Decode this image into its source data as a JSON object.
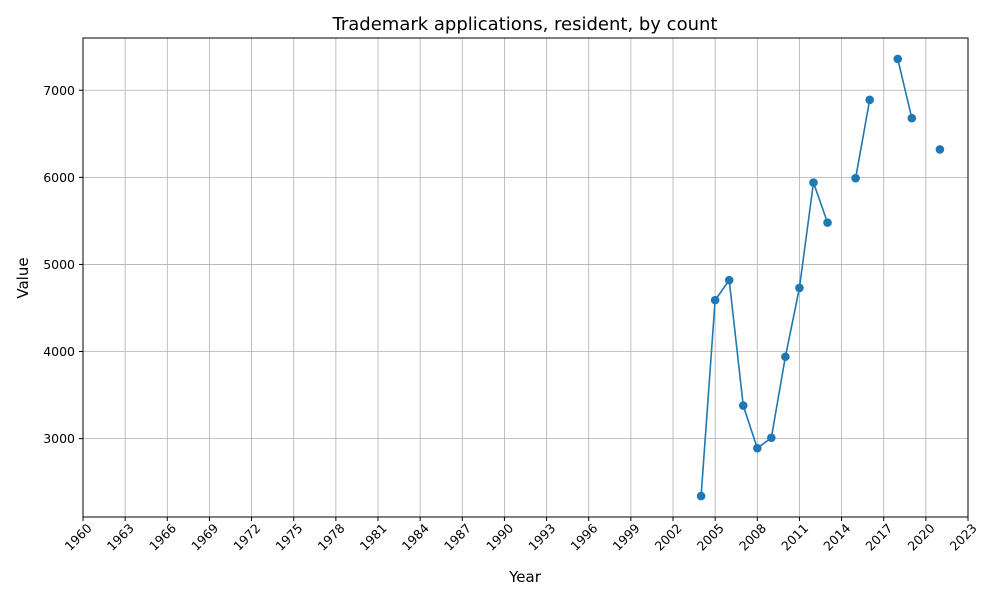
{
  "chart_data": {
    "type": "line",
    "title": "Trademark applications, resident, by count",
    "xlabel": "Year",
    "ylabel": "Value",
    "xlim": [
      1960,
      2023
    ],
    "ylim": [
      2100,
      7600
    ],
    "xticks": [
      1960,
      1963,
      1966,
      1969,
      1972,
      1975,
      1978,
      1981,
      1984,
      1987,
      1990,
      1993,
      1996,
      1999,
      2002,
      2005,
      2008,
      2011,
      2014,
      2017,
      2020,
      2023
    ],
    "yticks": [
      3000,
      4000,
      5000,
      6000,
      7000
    ],
    "grid": true,
    "series": [
      {
        "color": "#1f77b4",
        "points": [
          {
            "x": 2004,
            "y": 2340
          },
          {
            "x": 2005,
            "y": 4590
          },
          {
            "x": 2006,
            "y": 4820
          },
          {
            "x": 2007,
            "y": 3380
          },
          {
            "x": 2008,
            "y": 2890
          },
          {
            "x": 2009,
            "y": 3010
          },
          {
            "x": 2010,
            "y": 3940
          },
          {
            "x": 2011,
            "y": 4730
          },
          {
            "x": 2012,
            "y": 5940
          },
          {
            "x": 2013,
            "y": 5480
          },
          {
            "x": 2014,
            "y": null
          },
          {
            "x": 2015,
            "y": 5990
          },
          {
            "x": 2016,
            "y": 6890
          },
          {
            "x": 2017,
            "y": null
          },
          {
            "x": 2018,
            "y": 7360
          },
          {
            "x": 2019,
            "y": 6680
          },
          {
            "x": 2020,
            "y": null
          },
          {
            "x": 2021,
            "y": 6320
          }
        ]
      }
    ]
  }
}
